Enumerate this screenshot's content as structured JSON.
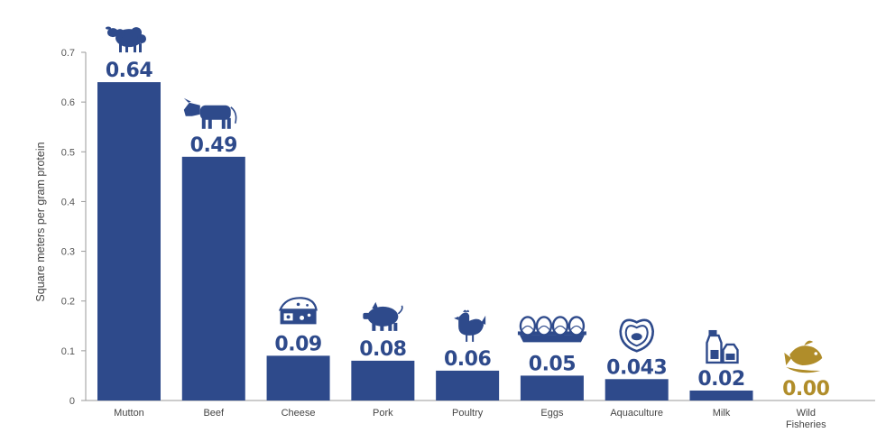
{
  "chart_data": {
    "type": "bar",
    "ylabel": "Square meters per gram protein",
    "ylim": [
      0,
      0.7
    ],
    "yticks": [
      0,
      0.1,
      0.2,
      0.3,
      0.4,
      0.5,
      0.6,
      0.7
    ],
    "ytick_labels": [
      "0",
      "0.1",
      "0.2",
      "0.3",
      "0.4",
      "0.5",
      "0.6",
      "0.7"
    ],
    "grid": false,
    "categories": [
      {
        "label": [
          "Mutton"
        ],
        "value": 0.64,
        "value_label": "0.64",
        "icon": "sheep-icon",
        "color": "#2e4a8b"
      },
      {
        "label": [
          "Beef"
        ],
        "value": 0.49,
        "value_label": "0.49",
        "icon": "cow-icon",
        "color": "#2e4a8b"
      },
      {
        "label": [
          "Cheese"
        ],
        "value": 0.09,
        "value_label": "0.09",
        "icon": "cheese-icon",
        "color": "#2e4a8b"
      },
      {
        "label": [
          "Pork"
        ],
        "value": 0.08,
        "value_label": "0.08",
        "icon": "pig-icon",
        "color": "#2e4a8b"
      },
      {
        "label": [
          "Poultry"
        ],
        "value": 0.06,
        "value_label": "0.06",
        "icon": "chicken-icon",
        "color": "#2e4a8b"
      },
      {
        "label": [
          "Eggs"
        ],
        "value": 0.05,
        "value_label": "0.05",
        "icon": "eggs-icon",
        "color": "#2e4a8b"
      },
      {
        "label": [
          "Aquaculture"
        ],
        "value": 0.043,
        "value_label": "0.043",
        "icon": "oyster-icon",
        "color": "#2e4a8b"
      },
      {
        "label": [
          "Milk"
        ],
        "value": 0.02,
        "value_label": "0.02",
        "icon": "milk-carton-icon",
        "color": "#2e4a8b"
      },
      {
        "label": [
          "Wild",
          "Fisheries"
        ],
        "value": 0.0,
        "value_label": "0.00",
        "icon": "fish-icon",
        "color": "#b08d2a"
      }
    ]
  }
}
